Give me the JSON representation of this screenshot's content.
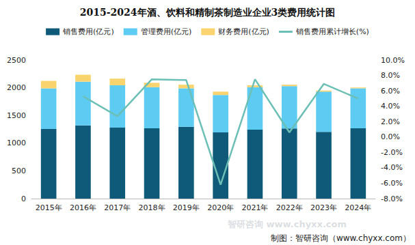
{
  "chart_data": {
    "type": "bar",
    "title": "2015-2024年酒、饮料和精制茶制造业企业3类费用统计图",
    "categories": [
      "2015年",
      "2016年",
      "2017年",
      "2018年",
      "2019年",
      "2020年",
      "2021年",
      "2022年",
      "2023年",
      "2024年"
    ],
    "stacked": true,
    "grid": false,
    "legend": "top",
    "series": [
      {
        "name": "销售费用(亿元)",
        "type": "bar",
        "color": "#0e5a78",
        "values": [
          1255,
          1320,
          1280,
          1270,
          1295,
          1195,
          1245,
          1265,
          1205,
          1270
        ]
      },
      {
        "name": "管理费用(亿元)",
        "type": "bar",
        "color": "#5ecbf2",
        "values": [
          735,
          790,
          765,
          740,
          695,
          675,
          765,
          765,
          725,
          720
        ]
      },
      {
        "name": "财务费用(亿元)",
        "type": "bar",
        "color": "#f9d46e",
        "values": [
          135,
          125,
          120,
          80,
          65,
          60,
          35,
          25,
          20,
          15
        ]
      },
      {
        "name": "销售费用累计增长(%)",
        "type": "line",
        "axis": "y2",
        "color": "#6bbfb5",
        "values": [
          null,
          5.3,
          2.7,
          7.5,
          7.4,
          -6.2,
          7.5,
          0.6,
          6.9,
          5.0
        ]
      }
    ],
    "ylim": [
      0,
      2500
    ],
    "yticks": [
      0,
      500,
      1000,
      1500,
      2000,
      2500
    ],
    "y2lim": [
      -8,
      10
    ],
    "y2ticks": [
      {
        "value": -8,
        "label": "-8.0%"
      },
      {
        "value": -6,
        "label": "-6.0%"
      },
      {
        "value": -4,
        "label": "-4.0%"
      },
      {
        "value": -2,
        "label": "-2.0%"
      },
      {
        "value": 0,
        "label": "0.0%"
      },
      {
        "value": 2,
        "label": "2.0%"
      },
      {
        "value": 4,
        "label": "4.0%"
      },
      {
        "value": 6,
        "label": "6.0%"
      },
      {
        "value": 8,
        "label": "8.0%"
      },
      {
        "value": 10,
        "label": "10.0%"
      }
    ],
    "annotations": [
      "制图：智研咨询（www.chyxx.com）",
      "智研咨询 www.chyxx.com"
    ]
  }
}
